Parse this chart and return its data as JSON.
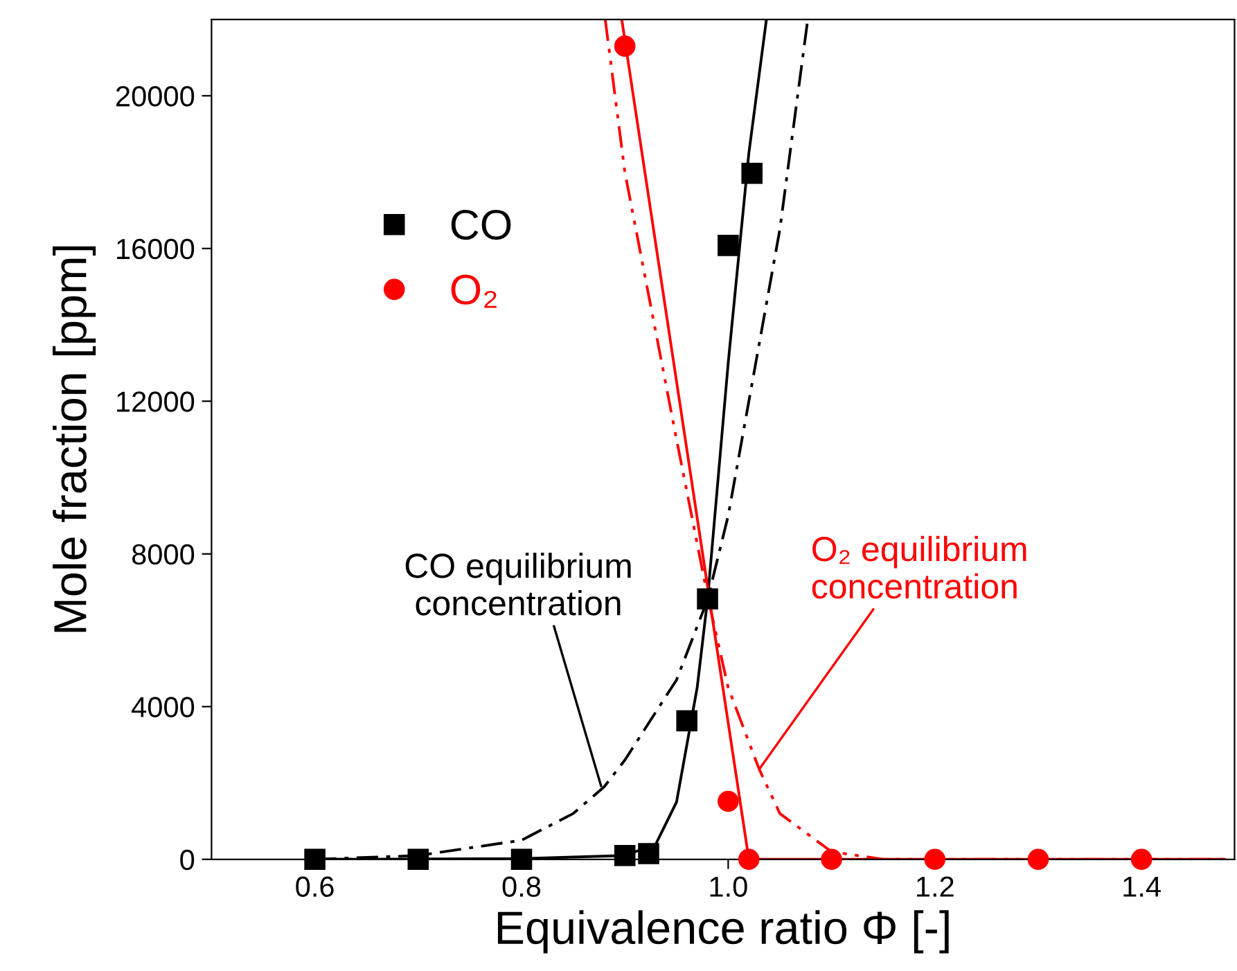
{
  "chart_data": {
    "type": "scatter",
    "xlabel": "Equivalence ratio Φ [-]",
    "ylabel": "Mole fraction [ppm]",
    "xlim": [
      0.5,
      1.49
    ],
    "ylim": [
      0,
      22000
    ],
    "xticks": [
      0.6,
      0.8,
      {
        "value": 1.0,
        "label": "1.0"
      },
      1.2,
      1.4
    ],
    "yticks": [
      0,
      4000,
      8000,
      12000,
      16000,
      20000
    ],
    "grid": false,
    "legend": "top left",
    "series": [
      {
        "name": "CO",
        "marker": "square",
        "color": "#000000",
        "x": [
          0.6,
          0.7,
          0.8,
          0.9,
          0.923,
          0.96,
          0.98,
          1.0,
          1.023
        ],
        "values": [
          0,
          0,
          0,
          100,
          150,
          3630,
          6820,
          16080,
          17970
        ]
      },
      {
        "name": "O₂",
        "marker": "circle",
        "color": "#ff0000",
        "x": [
          0.9,
          1.0,
          1.02,
          1.1,
          1.2,
          1.3,
          1.4
        ],
        "values": [
          21300,
          1520,
          0,
          0,
          0,
          0,
          0
        ]
      },
      {
        "type": "line",
        "line_style": "solid",
        "color": "#000000",
        "x": [
          0.6,
          0.8,
          0.9,
          0.93,
          0.95,
          0.97,
          0.98,
          1.0,
          1.02,
          1.037
        ],
        "values": [
          0,
          20,
          100,
          400,
          1500,
          4500,
          6800,
          13000,
          18500,
          22000
        ]
      },
      {
        "type": "line",
        "line_style": "solid",
        "color": "#ff0000",
        "x": [
          0.897,
          1.02,
          1.48
        ],
        "values": [
          22000,
          0,
          0
        ]
      },
      {
        "type": "line",
        "line_style": "dashdot",
        "color": "#000000",
        "x": [
          0.6,
          0.7,
          0.8,
          0.85,
          0.88,
          0.9,
          0.95,
          0.98,
          1.0,
          1.02,
          1.05,
          1.077
        ],
        "values": [
          0,
          100,
          500,
          1200,
          1900,
          2600,
          4700,
          6800,
          9000,
          12000,
          16500,
          22000
        ]
      },
      {
        "type": "line",
        "line_style": "dashdotdot",
        "color": "#ff0000",
        "x": [
          0.881,
          0.9,
          0.95,
          0.98,
          1.0,
          1.03,
          1.05,
          1.1,
          1.15,
          1.48
        ],
        "values": [
          22000,
          18000,
          11000,
          6900,
          4500,
          2360,
          1200,
          200,
          0,
          0
        ]
      }
    ],
    "annotations": [
      {
        "text": "CO equilibrium\nconcentration",
        "x": 0.877,
        "y": 1920
      },
      {
        "text": "O₂ equilibrium\nconcentration",
        "x": 1.03,
        "y": 2360
      }
    ]
  }
}
